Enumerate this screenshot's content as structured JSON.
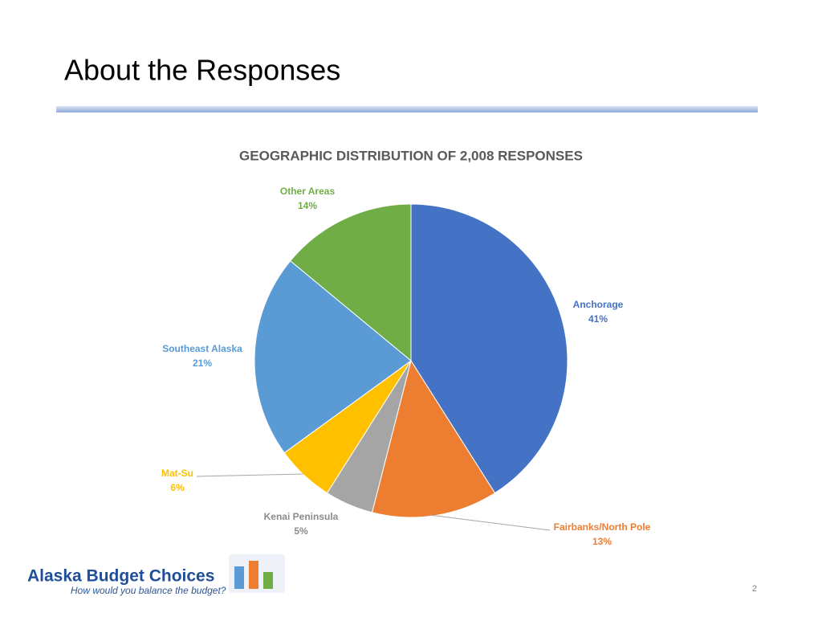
{
  "slide": {
    "title": "About the Responses",
    "page_number": "2"
  },
  "logo": {
    "name": "Alaska Budget Choices",
    "tagline": "How would you balance the budget?"
  },
  "chart_data": {
    "type": "pie",
    "title": "GEOGRAPHIC DISTRIBUTION OF 2,008 RESPONSES",
    "categories": [
      "Anchorage",
      "Fairbanks/North Pole",
      "Kenai Peninsula",
      "Mat-Su",
      "Southeast Alaska",
      "Other Areas"
    ],
    "values": [
      41,
      13,
      5,
      6,
      21,
      14
    ],
    "value_labels": [
      "41%",
      "13%",
      "5%",
      "6%",
      "21%",
      "14%"
    ],
    "colors": [
      "#4472c4",
      "#ed7d31",
      "#a5a5a5",
      "#ffc000",
      "#5b9bd5",
      "#70ad47"
    ]
  }
}
